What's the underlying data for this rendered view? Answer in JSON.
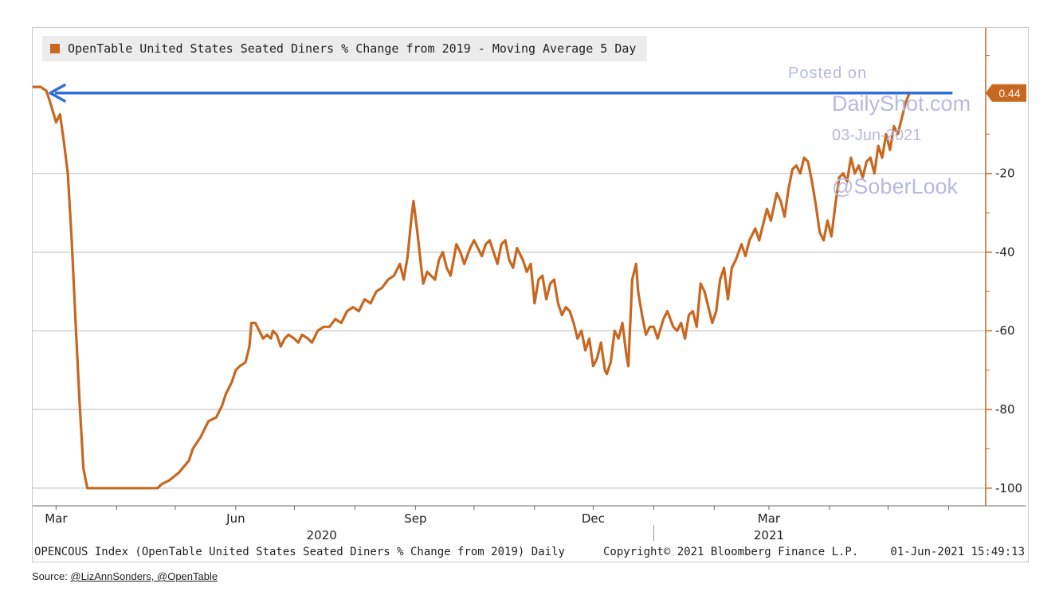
{
  "chart_data": {
    "type": "line",
    "title": "",
    "xlabel": "",
    "ylabel": "",
    "legend": {
      "placement": "top-left",
      "entries": [
        "OpenTable United States Seated Diners % Change from 2019 - Moving Average 5 Day"
      ]
    },
    "ylim": [
      -104.5,
      17
    ],
    "y_ticks": [
      -20,
      -40,
      -60,
      -80,
      -100
    ],
    "y_tick_labels": [
      "-20",
      "-40",
      "-60",
      "-80",
      "-100"
    ],
    "x_ticks": [
      {
        "label": "Mar",
        "date": "2020-03-01"
      },
      {
        "label": "Jun",
        "date": "2020-06-01"
      },
      {
        "label": "Sep",
        "date": "2020-09-01"
      },
      {
        "label": "Dec",
        "date": "2020-12-01"
      },
      {
        "label": "Mar",
        "date": "2021-03-01"
      }
    ],
    "x_years": [
      {
        "label": "2020",
        "date": "2020-07-15"
      },
      {
        "label": "2021",
        "date": "2021-03-01"
      }
    ],
    "xlim": [
      "2020-02-18",
      "2021-06-20"
    ],
    "grid": true,
    "colors": {
      "series": "#c8671f",
      "arrow": "#2f6fd6",
      "grid": "#c8c8c8"
    },
    "last_value_label": "0.44",
    "annotation": {
      "type": "arrow",
      "from_date": "2021-06-03",
      "to_date": "2020-02-27",
      "y": 0.44,
      "color": "#2f6fd6"
    },
    "series": [
      {
        "name": "OpenTable United States Seated Diners % Change from 2019 - Moving Average 5 Day",
        "points": [
          [
            "2020-02-18",
            2
          ],
          [
            "2020-02-22",
            2
          ],
          [
            "2020-02-25",
            1
          ],
          [
            "2020-02-27",
            -2
          ],
          [
            "2020-03-01",
            -7
          ],
          [
            "2020-03-03",
            -5
          ],
          [
            "2020-03-05",
            -12
          ],
          [
            "2020-03-07",
            -20
          ],
          [
            "2020-03-09",
            -37
          ],
          [
            "2020-03-11",
            -58
          ],
          [
            "2020-03-13",
            -78
          ],
          [
            "2020-03-15",
            -95
          ],
          [
            "2020-03-17",
            -100
          ],
          [
            "2020-03-20",
            -100
          ],
          [
            "2020-04-01",
            -100
          ],
          [
            "2020-04-15",
            -100
          ],
          [
            "2020-04-22",
            -100
          ],
          [
            "2020-04-24",
            -99
          ],
          [
            "2020-04-28",
            -98
          ],
          [
            "2020-05-03",
            -96
          ],
          [
            "2020-05-08",
            -93
          ],
          [
            "2020-05-10",
            -90
          ],
          [
            "2020-05-14",
            -87
          ],
          [
            "2020-05-18",
            -83
          ],
          [
            "2020-05-22",
            -82
          ],
          [
            "2020-05-25",
            -79
          ],
          [
            "2020-05-27",
            -76
          ],
          [
            "2020-05-30",
            -73
          ],
          [
            "2020-06-01",
            -70
          ],
          [
            "2020-06-03",
            -69
          ],
          [
            "2020-06-06",
            -68
          ],
          [
            "2020-06-08",
            -64
          ],
          [
            "2020-06-09",
            -58
          ],
          [
            "2020-06-11",
            -58
          ],
          [
            "2020-06-13",
            -60
          ],
          [
            "2020-06-15",
            -62
          ],
          [
            "2020-06-17",
            -61
          ],
          [
            "2020-06-19",
            -62
          ],
          [
            "2020-06-20",
            -60
          ],
          [
            "2020-06-22",
            -61
          ],
          [
            "2020-06-24",
            -64
          ],
          [
            "2020-06-26",
            -62
          ],
          [
            "2020-06-28",
            -61
          ],
          [
            "2020-07-01",
            -62
          ],
          [
            "2020-07-03",
            -63
          ],
          [
            "2020-07-05",
            -61
          ],
          [
            "2020-07-08",
            -62
          ],
          [
            "2020-07-10",
            -63
          ],
          [
            "2020-07-13",
            -60
          ],
          [
            "2020-07-16",
            -59
          ],
          [
            "2020-07-19",
            -59
          ],
          [
            "2020-07-22",
            -57
          ],
          [
            "2020-07-25",
            -58
          ],
          [
            "2020-07-28",
            -55
          ],
          [
            "2020-07-31",
            -54
          ],
          [
            "2020-08-03",
            -55
          ],
          [
            "2020-08-06",
            -52
          ],
          [
            "2020-08-09",
            -53
          ],
          [
            "2020-08-12",
            -50
          ],
          [
            "2020-08-15",
            -49
          ],
          [
            "2020-08-18",
            -47
          ],
          [
            "2020-08-21",
            -46
          ],
          [
            "2020-08-24",
            -43
          ],
          [
            "2020-08-26",
            -47
          ],
          [
            "2020-08-28",
            -41
          ],
          [
            "2020-08-30",
            -31
          ],
          [
            "2020-08-31",
            -27
          ],
          [
            "2020-09-02",
            -35
          ],
          [
            "2020-09-04",
            -44
          ],
          [
            "2020-09-05",
            -48
          ],
          [
            "2020-09-07",
            -45
          ],
          [
            "2020-09-09",
            -46
          ],
          [
            "2020-09-11",
            -47
          ],
          [
            "2020-09-13",
            -42
          ],
          [
            "2020-09-15",
            -40
          ],
          [
            "2020-09-17",
            -44
          ],
          [
            "2020-09-19",
            -46
          ],
          [
            "2020-09-22",
            -38
          ],
          [
            "2020-09-24",
            -40
          ],
          [
            "2020-09-26",
            -43
          ],
          [
            "2020-09-29",
            -39
          ],
          [
            "2020-10-01",
            -37
          ],
          [
            "2020-10-03",
            -39
          ],
          [
            "2020-10-05",
            -41
          ],
          [
            "2020-10-07",
            -38
          ],
          [
            "2020-10-09",
            -37
          ],
          [
            "2020-10-11",
            -40
          ],
          [
            "2020-10-13",
            -43
          ],
          [
            "2020-10-15",
            -38
          ],
          [
            "2020-10-17",
            -37
          ],
          [
            "2020-10-19",
            -42
          ],
          [
            "2020-10-21",
            -44
          ],
          [
            "2020-10-23",
            -39
          ],
          [
            "2020-10-26",
            -42
          ],
          [
            "2020-10-28",
            -45
          ],
          [
            "2020-10-30",
            -43
          ],
          [
            "2020-11-01",
            -53
          ],
          [
            "2020-11-03",
            -47
          ],
          [
            "2020-11-05",
            -46
          ],
          [
            "2020-11-07",
            -52
          ],
          [
            "2020-11-09",
            -48
          ],
          [
            "2020-11-11",
            -47
          ],
          [
            "2020-11-13",
            -53
          ],
          [
            "2020-11-15",
            -56
          ],
          [
            "2020-11-17",
            -54
          ],
          [
            "2020-11-19",
            -55
          ],
          [
            "2020-11-21",
            -58
          ],
          [
            "2020-11-23",
            -62
          ],
          [
            "2020-11-25",
            -60
          ],
          [
            "2020-11-27",
            -65
          ],
          [
            "2020-11-29",
            -62
          ],
          [
            "2020-12-01",
            -69
          ],
          [
            "2020-12-03",
            -67
          ],
          [
            "2020-12-05",
            -63
          ],
          [
            "2020-12-07",
            -70
          ],
          [
            "2020-12-08",
            -71
          ],
          [
            "2020-12-10",
            -68
          ],
          [
            "2020-12-12",
            -60
          ],
          [
            "2020-12-14",
            -62
          ],
          [
            "2020-12-16",
            -58
          ],
          [
            "2020-12-18",
            -66
          ],
          [
            "2020-12-19",
            -69
          ],
          [
            "2020-12-21",
            -47
          ],
          [
            "2020-12-23",
            -43
          ],
          [
            "2020-12-24",
            -50
          ],
          [
            "2020-12-26",
            -56
          ],
          [
            "2020-12-28",
            -61
          ],
          [
            "2020-12-30",
            -59
          ],
          [
            "2021-01-01",
            -59
          ],
          [
            "2021-01-03",
            -62
          ],
          [
            "2021-01-06",
            -57
          ],
          [
            "2021-01-08",
            -55
          ],
          [
            "2021-01-11",
            -59
          ],
          [
            "2021-01-13",
            -60
          ],
          [
            "2021-01-15",
            -58
          ],
          [
            "2021-01-17",
            -62
          ],
          [
            "2021-01-19",
            -56
          ],
          [
            "2021-01-21",
            -55
          ],
          [
            "2021-01-23",
            -59
          ],
          [
            "2021-01-25",
            -48
          ],
          [
            "2021-01-27",
            -50
          ],
          [
            "2021-01-29",
            -54
          ],
          [
            "2021-01-31",
            -58
          ],
          [
            "2021-02-02",
            -55
          ],
          [
            "2021-02-04",
            -47
          ],
          [
            "2021-02-06",
            -44
          ],
          [
            "2021-02-08",
            -52
          ],
          [
            "2021-02-10",
            -44
          ],
          [
            "2021-02-12",
            -42
          ],
          [
            "2021-02-15",
            -38
          ],
          [
            "2021-02-17",
            -41
          ],
          [
            "2021-02-19",
            -37
          ],
          [
            "2021-02-22",
            -34
          ],
          [
            "2021-02-24",
            -37
          ],
          [
            "2021-02-26",
            -33
          ],
          [
            "2021-02-28",
            -29
          ],
          [
            "2021-03-02",
            -32
          ],
          [
            "2021-03-05",
            -25
          ],
          [
            "2021-03-07",
            -27
          ],
          [
            "2021-03-09",
            -31
          ],
          [
            "2021-03-11",
            -24
          ],
          [
            "2021-03-13",
            -19
          ],
          [
            "2021-03-15",
            -18
          ],
          [
            "2021-03-17",
            -20
          ],
          [
            "2021-03-19",
            -16
          ],
          [
            "2021-03-21",
            -17
          ],
          [
            "2021-03-23",
            -22
          ],
          [
            "2021-03-25",
            -28
          ],
          [
            "2021-03-27",
            -35
          ],
          [
            "2021-03-29",
            -37
          ],
          [
            "2021-03-31",
            -32
          ],
          [
            "2021-04-02",
            -36
          ],
          [
            "2021-04-04",
            -28
          ],
          [
            "2021-04-06",
            -21
          ],
          [
            "2021-04-08",
            -20
          ],
          [
            "2021-04-10",
            -22
          ],
          [
            "2021-04-12",
            -16
          ],
          [
            "2021-04-14",
            -20
          ],
          [
            "2021-04-16",
            -18
          ],
          [
            "2021-04-18",
            -21
          ],
          [
            "2021-04-20",
            -17
          ],
          [
            "2021-04-22",
            -16
          ],
          [
            "2021-04-24",
            -20
          ],
          [
            "2021-04-26",
            -13
          ],
          [
            "2021-04-28",
            -16
          ],
          [
            "2021-04-30",
            -10
          ],
          [
            "2021-05-02",
            -14
          ],
          [
            "2021-05-04",
            -8
          ],
          [
            "2021-05-06",
            -10
          ],
          [
            "2021-05-08",
            -6
          ],
          [
            "2021-05-10",
            -2
          ],
          [
            "2021-05-12",
            0.44
          ]
        ]
      }
    ]
  },
  "legend_label": "OpenTable United States Seated Diners % Change from 2019 - Moving Average 5 Day",
  "watermark": {
    "posted": "Posted on",
    "site": "DailyShot.com",
    "date": "03-Jun-2021",
    "handle": "@SoberLook"
  },
  "footer": {
    "index": "OPENCOUS Index (OpenTable United States Seated Diners % Change from 2019)  Daily",
    "copyright": "Copyright© 2021 Bloomberg Finance L.P.",
    "timestamp": "01-Jun-2021 15:49:13"
  },
  "source": {
    "prefix": "Source: ",
    "links": "@LizAnnSonders, @OpenTable"
  }
}
